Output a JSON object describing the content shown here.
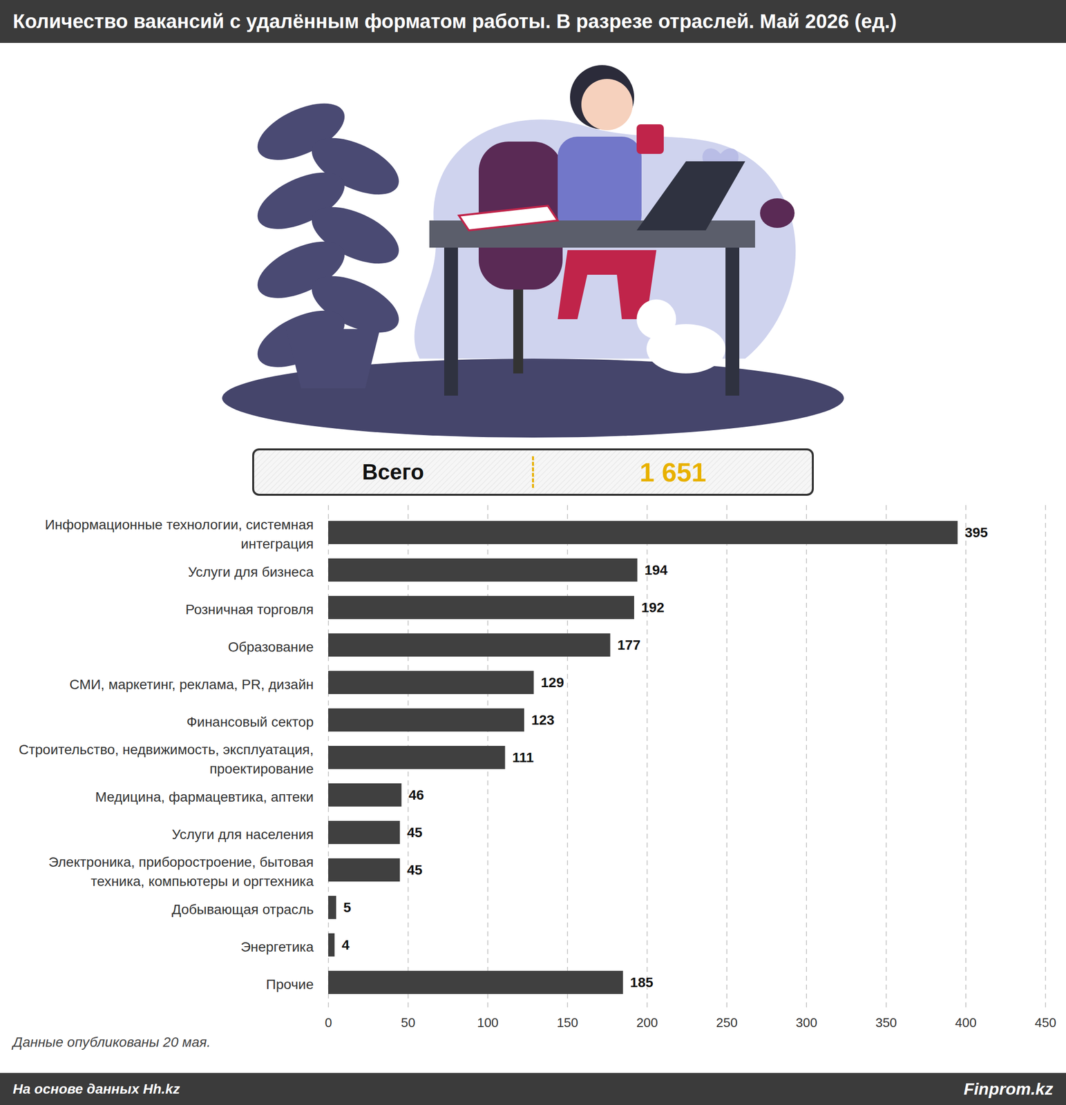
{
  "chart_data": {
    "type": "bar",
    "title": "Количество вакансий с удалённым форматом работы. В разрезе отраслей. Май 2026 (ед.)",
    "orientation": "horizontal",
    "categories": [
      "Информационные технологии, системная интеграция",
      "Услуги для бизнеса",
      "Розничная торговля",
      "Образование",
      "СМИ, маркетинг, реклама, PR, дизайн",
      "Финансовый сектор",
      "Строительство, недвижимость, эксплуатация, проектирование",
      "Медицина, фармацевтика, аптеки",
      "Услуги для населения",
      "Электроника, приборостроение, бытовая техника, компьютеры и оргтехника",
      "Добывающая отрасль",
      "Энергетика",
      "Прочие"
    ],
    "values": [
      395,
      194,
      192,
      177,
      129,
      123,
      111,
      46,
      45,
      45,
      5,
      4,
      185
    ],
    "color": "#404040",
    "xlim": [
      0,
      450
    ],
    "xticks": [
      0,
      50,
      100,
      150,
      200,
      250,
      300,
      350,
      400,
      450
    ],
    "grid": true,
    "data_labels": true,
    "total": {
      "label": "Всего",
      "value": 1651,
      "value_label": "1 651"
    },
    "note": "Данные опубликованы 20 мая.",
    "source": "На основе данных Hh.kz",
    "credit": "Finprom.kz"
  }
}
